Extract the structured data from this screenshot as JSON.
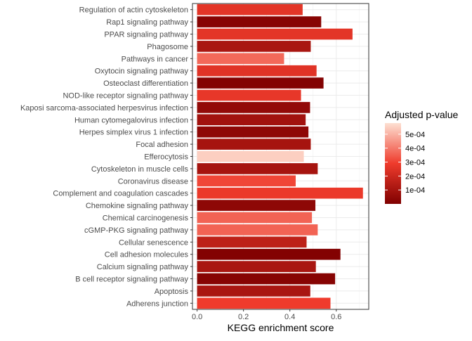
{
  "chart_data": {
    "type": "bar",
    "orientation": "horizontal",
    "xlabel": "KEGG enrichment score",
    "ylabel": "",
    "xlim": [
      -0.02,
      0.74
    ],
    "xticks": [
      0.0,
      0.2,
      0.4,
      0.6
    ],
    "xtick_labels": [
      "0.0",
      "0.2",
      "0.4",
      "0.6"
    ],
    "grid": true,
    "categories": [
      "Regulation of actin cytoskeleton",
      "Rap1 signaling pathway",
      "PPAR signaling pathway",
      "Phagosome",
      "Pathways in cancer",
      "Oxytocin signaling pathway",
      "Osteoclast differentiation",
      "NOD-like receptor signaling pathway",
      "Kaposi sarcoma-associated herpesvirus infection",
      "Human cytomegalovirus infection",
      "Herpes simplex virus 1 infection",
      "Focal adhesion",
      "Efferocytosis",
      "Cytoskeleton in muscle cells",
      "Coronavirus disease",
      "Complement and coagulation cascades",
      "Chemokine signaling pathway",
      "Chemical carcinogenesis",
      "cGMP-PKG signaling pathway",
      "Cellular senescence",
      "Cell adhesion molecules",
      "Calcium signaling pathway",
      "B cell receptor signaling pathway",
      "Apoptosis",
      "Adherens junction"
    ],
    "values": [
      0.455,
      0.535,
      0.67,
      0.49,
      0.375,
      0.515,
      0.545,
      0.448,
      0.487,
      0.468,
      0.48,
      0.49,
      0.46,
      0.52,
      0.425,
      0.715,
      0.51,
      0.495,
      0.52,
      0.472,
      0.618,
      0.512,
      0.595,
      0.488,
      0.575
    ],
    "padj": [
      0.00026,
      2e-05,
      0.00026,
      0.00011,
      0.00037,
      0.00025,
      1e-05,
      0.00027,
      5e-05,
      9e-05,
      4e-05,
      0.0001,
      0.00055,
      0.0001,
      0.00031,
      0.00028,
      4e-05,
      0.00036,
      0.00036,
      0.00016,
      1e-05,
      0.00011,
      2e-05,
      0.00011,
      0.00029
    ],
    "color_scale": {
      "title": "Adjusted p-value",
      "min": 0.0,
      "max": 0.00058,
      "low_color": "#7f0000",
      "mid_color": "#ef3b2c",
      "high_color": "#fde0d2",
      "ticks": [
        0.0001,
        0.0002,
        0.0003,
        0.0004,
        0.0005
      ],
      "tick_labels": [
        "1e-04",
        "2e-04",
        "3e-04",
        "4e-04",
        "5e-04"
      ]
    },
    "legend_position": "right"
  }
}
